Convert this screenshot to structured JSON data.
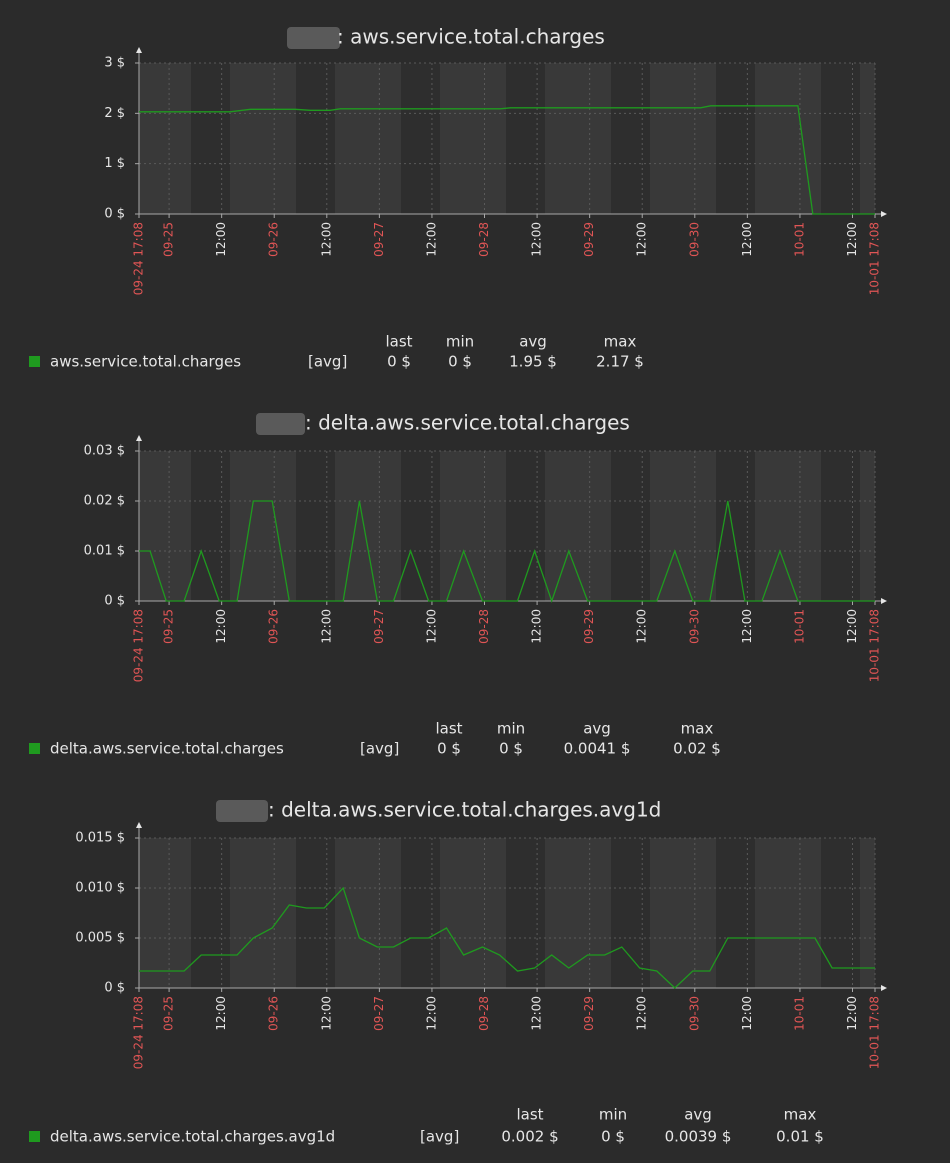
{
  "chart_data": [
    {
      "type": "line",
      "title": ": aws.service.total.charges",
      "x": [
        "09-24 17:08",
        "09-25 13:56",
        "09-25 18:32",
        "09-26 04:50",
        "09-26 08:14",
        "09-26 12:50",
        "09-26 15:03",
        "09-28 03:38",
        "09-28 05:56",
        "09-30 01:20",
        "09-30 03:38",
        "09-30 23:32",
        "10-01 02:56",
        "10-01 17:08"
      ],
      "series": [
        {
          "name": "aws.service.total.charges",
          "color": "#1f9a1f",
          "values": [
            2.03,
            2.03,
            2.08,
            2.08,
            2.06,
            2.06,
            2.09,
            2.09,
            2.11,
            2.11,
            2.15,
            2.15,
            0,
            0
          ]
        }
      ],
      "xlim": [
        "09-24 17:08",
        "10-01 17:08"
      ],
      "xticks": [
        {
          "value": "09-24 17:08",
          "label": "09-24 17:08"
        },
        {
          "value": "09-25 00:00",
          "label": "09-25"
        },
        {
          "value": "09-25 12:00",
          "label": "12:00"
        },
        {
          "value": "09-26 00:00",
          "label": "09-26"
        },
        {
          "value": "09-26 12:00",
          "label": "12:00"
        },
        {
          "value": "09-27 00:00",
          "label": "09-27"
        },
        {
          "value": "09-27 12:00",
          "label": "12:00"
        },
        {
          "value": "09-28 00:00",
          "label": "09-28"
        },
        {
          "value": "09-28 12:00",
          "label": "12:00"
        },
        {
          "value": "09-29 00:00",
          "label": "09-29"
        },
        {
          "value": "09-29 12:00",
          "label": "12:00"
        },
        {
          "value": "09-30 00:00",
          "label": "09-30"
        },
        {
          "value": "09-30 12:00",
          "label": "12:00"
        },
        {
          "value": "10-01 00:00",
          "label": "10-01"
        },
        {
          "value": "10-01 12:00",
          "label": "12:00"
        },
        {
          "value": "10-01 17:08",
          "label": "10-01 17:08"
        }
      ],
      "ylim": [
        0,
        3
      ],
      "yticks": [
        {
          "value": 0,
          "label": "0 $"
        },
        {
          "value": 1,
          "label": "1 $"
        },
        {
          "value": 2,
          "label": "2 $"
        },
        {
          "value": 3,
          "label": "3 $"
        }
      ],
      "grid": true,
      "legend": {
        "function": "[avg]",
        "headers": [
          "last",
          "min",
          "avg",
          "max"
        ],
        "stats": [
          "0 $",
          "0 $",
          "1.95 $",
          "2.17 $"
        ]
      }
    },
    {
      "type": "line",
      "title": ": delta.aws.service.total.charges",
      "x": [
        "09-24 17:08",
        "09-24 19:40",
        "09-24 23:20",
        "09-25 03:26",
        "09-25 07:20",
        "09-25 11:26",
        "09-25 15:32",
        "09-25 19:14",
        "09-25 23:32",
        "09-26 03:26",
        "09-26 15:44",
        "09-26 19:26",
        "09-26 23:32",
        "09-27 03:14",
        "09-27 07:08",
        "09-27 11:14",
        "09-27 15:20",
        "09-27 19:14",
        "09-27 23:32",
        "09-28 07:32",
        "09-28 11:26",
        "09-28 15:20",
        "09-28 19:14",
        "09-28 23:32",
        "09-29 15:20",
        "09-29 19:26",
        "09-29 23:32",
        "09-30 03:26",
        "09-30 07:32",
        "09-30 11:26",
        "09-30 15:20",
        "09-30 19:26",
        "09-30 23:32",
        "10-01 17:08"
      ],
      "series": [
        {
          "name": "delta.aws.service.total.charges",
          "color": "#1f9a1f",
          "values": [
            0.01,
            0.01,
            0,
            0,
            0.01,
            0,
            0,
            0.02,
            0.02,
            0,
            0,
            0.02,
            0,
            0,
            0.01,
            0,
            0,
            0.01,
            0,
            0,
            0.01,
            0,
            0.01,
            0,
            0,
            0.01,
            0,
            0,
            0.02,
            0,
            0,
            0.01,
            0,
            0
          ]
        }
      ],
      "xlim": [
        "09-24 17:08",
        "10-01 17:08"
      ],
      "xticks": [
        {
          "value": "09-24 17:08",
          "label": "09-24 17:08"
        },
        {
          "value": "09-25 00:00",
          "label": "09-25"
        },
        {
          "value": "09-25 12:00",
          "label": "12:00"
        },
        {
          "value": "09-26 00:00",
          "label": "09-26"
        },
        {
          "value": "09-26 12:00",
          "label": "12:00"
        },
        {
          "value": "09-27 00:00",
          "label": "09-27"
        },
        {
          "value": "09-27 12:00",
          "label": "12:00"
        },
        {
          "value": "09-28 00:00",
          "label": "09-28"
        },
        {
          "value": "09-28 12:00",
          "label": "12:00"
        },
        {
          "value": "09-29 00:00",
          "label": "09-29"
        },
        {
          "value": "09-29 12:00",
          "label": "12:00"
        },
        {
          "value": "09-30 00:00",
          "label": "09-30"
        },
        {
          "value": "09-30 12:00",
          "label": "12:00"
        },
        {
          "value": "10-01 00:00",
          "label": "10-01"
        },
        {
          "value": "10-01 12:00",
          "label": "12:00"
        },
        {
          "value": "10-01 17:08",
          "label": "10-01 17:08"
        }
      ],
      "ylim": [
        0,
        0.03
      ],
      "yticks": [
        {
          "value": 0,
          "label": "0 $"
        },
        {
          "value": 0.01,
          "label": "0.01 $"
        },
        {
          "value": 0.02,
          "label": "0.02 $"
        },
        {
          "value": 0.03,
          "label": "0.03 $"
        }
      ],
      "grid": true,
      "legend": {
        "function": "[avg]",
        "headers": [
          "last",
          "min",
          "avg",
          "max"
        ],
        "stats": [
          "0 $",
          "0 $",
          "0.0041 $",
          "0.02 $"
        ]
      }
    },
    {
      "type": "line",
      "title": ": delta.aws.service.total.charges.avg1d",
      "x": [
        "09-24 17:08",
        "09-25 03:26",
        "09-25 07:20",
        "09-25 15:32",
        "09-25 19:14",
        "09-25 23:32",
        "09-26 03:26",
        "09-26 07:20",
        "09-26 11:26",
        "09-26 15:44",
        "09-26 19:26",
        "09-26 23:32",
        "09-27 03:14",
        "09-27 07:08",
        "09-27 11:14",
        "09-27 15:20",
        "09-27 19:14",
        "09-27 23:32",
        "09-28 03:26",
        "09-28 07:32",
        "09-28 11:26",
        "09-28 15:20",
        "09-28 19:14",
        "09-28 23:32",
        "09-29 03:26",
        "09-29 07:20",
        "09-29 11:26",
        "09-29 15:20",
        "09-29 19:26",
        "09-29 23:32",
        "09-30 03:26",
        "09-30 07:32",
        "10-01 03:26",
        "10-01 07:20",
        "10-01 17:08"
      ],
      "series": [
        {
          "name": "delta.aws.service.total.charges.avg1d",
          "color": "#1f9a1f",
          "values": [
            0.0017,
            0.0017,
            0.0033,
            0.0033,
            0.005,
            0.006,
            0.0083,
            0.008,
            0.008,
            0.01,
            0.005,
            0.0041,
            0.0041,
            0.005,
            0.005,
            0.006,
            0.0033,
            0.0041,
            0.0033,
            0.0017,
            0.002,
            0.0033,
            0.002,
            0.0033,
            0.0033,
            0.0041,
            0.002,
            0.0017,
            0,
            0.0017,
            0.0017,
            0.005,
            0.005,
            0.002,
            0.002
          ]
        }
      ],
      "xlim": [
        "09-24 17:08",
        "10-01 17:08"
      ],
      "xticks": [
        {
          "value": "09-24 17:08",
          "label": "09-24 17:08"
        },
        {
          "value": "09-25 00:00",
          "label": "09-25"
        },
        {
          "value": "09-25 12:00",
          "label": "12:00"
        },
        {
          "value": "09-26 00:00",
          "label": "09-26"
        },
        {
          "value": "09-26 12:00",
          "label": "12:00"
        },
        {
          "value": "09-27 00:00",
          "label": "09-27"
        },
        {
          "value": "09-27 12:00",
          "label": "12:00"
        },
        {
          "value": "09-28 00:00",
          "label": "09-28"
        },
        {
          "value": "09-28 12:00",
          "label": "12:00"
        },
        {
          "value": "09-29 00:00",
          "label": "09-29"
        },
        {
          "value": "09-29 12:00",
          "label": "12:00"
        },
        {
          "value": "09-30 00:00",
          "label": "09-30"
        },
        {
          "value": "09-30 12:00",
          "label": "12:00"
        },
        {
          "value": "10-01 00:00",
          "label": "10-01"
        },
        {
          "value": "10-01 12:00",
          "label": "12:00"
        },
        {
          "value": "10-01 17:08",
          "label": "10-01 17:08"
        }
      ],
      "ylim": [
        0,
        0.015
      ],
      "yticks": [
        {
          "value": 0,
          "label": "0 $"
        },
        {
          "value": 0.005,
          "label": "0.005 $"
        },
        {
          "value": 0.01,
          "label": "0.010 $"
        },
        {
          "value": 0.015,
          "label": "0.015 $"
        }
      ],
      "grid": true,
      "legend": {
        "function": "[avg]",
        "headers": [
          "last",
          "min",
          "avg",
          "max"
        ],
        "stats": [
          "0.002 $",
          "0 $",
          "0.0039 $",
          "0.01 $"
        ]
      }
    }
  ]
}
